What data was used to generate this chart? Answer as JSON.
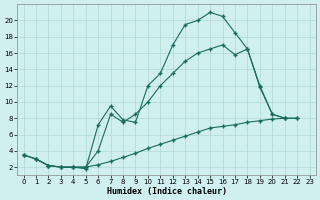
{
  "xlabel": "Humidex (Indice chaleur)",
  "background_color": "#cff0ee",
  "grid_color": "#b0d8d0",
  "line_color": "#1a6b5e",
  "xlim": [
    -0.5,
    23.5
  ],
  "ylim": [
    1,
    22
  ],
  "xticks": [
    0,
    1,
    2,
    3,
    4,
    5,
    6,
    7,
    8,
    9,
    10,
    11,
    12,
    13,
    14,
    15,
    16,
    17,
    18,
    19,
    20,
    21,
    22,
    23
  ],
  "yticks": [
    2,
    4,
    6,
    8,
    10,
    12,
    14,
    16,
    18,
    20
  ],
  "line1_x": [
    0,
    1,
    2,
    3,
    4,
    5,
    6,
    7,
    8,
    9,
    10,
    11,
    12,
    13,
    14,
    15,
    16,
    17,
    18,
    19,
    20,
    21,
    22
  ],
  "line1_y": [
    3.5,
    3.0,
    2.2,
    2.0,
    2.0,
    2.0,
    2.3,
    2.7,
    3.2,
    3.7,
    4.3,
    4.8,
    5.3,
    5.8,
    6.3,
    6.8,
    7.0,
    7.2,
    7.5,
    7.7,
    7.9,
    8.0,
    8.0
  ],
  "line2_x": [
    0,
    1,
    2,
    3,
    4,
    5,
    6,
    7,
    8,
    9,
    10,
    11,
    12,
    13,
    14,
    15,
    16,
    17,
    18,
    19,
    20,
    21
  ],
  "line2_y": [
    3.5,
    3.0,
    2.2,
    2.0,
    2.0,
    1.8,
    7.2,
    9.5,
    7.8,
    7.5,
    12.0,
    13.5,
    17.0,
    19.5,
    20.0,
    21.0,
    20.5,
    18.5,
    16.5,
    11.8,
    8.5,
    8.0
  ],
  "line3_x": [
    0,
    1,
    2,
    3,
    4,
    5,
    6,
    7,
    8,
    9,
    10,
    11,
    12,
    13,
    14,
    15,
    16,
    17,
    18,
    19,
    20,
    21,
    22
  ],
  "line3_y": [
    3.5,
    3.0,
    2.2,
    2.0,
    2.0,
    2.0,
    4.0,
    8.5,
    7.5,
    8.5,
    10.0,
    12.0,
    13.5,
    15.0,
    16.0,
    16.5,
    17.0,
    15.8,
    16.5,
    12.0,
    8.5,
    8.0,
    8.0
  ]
}
